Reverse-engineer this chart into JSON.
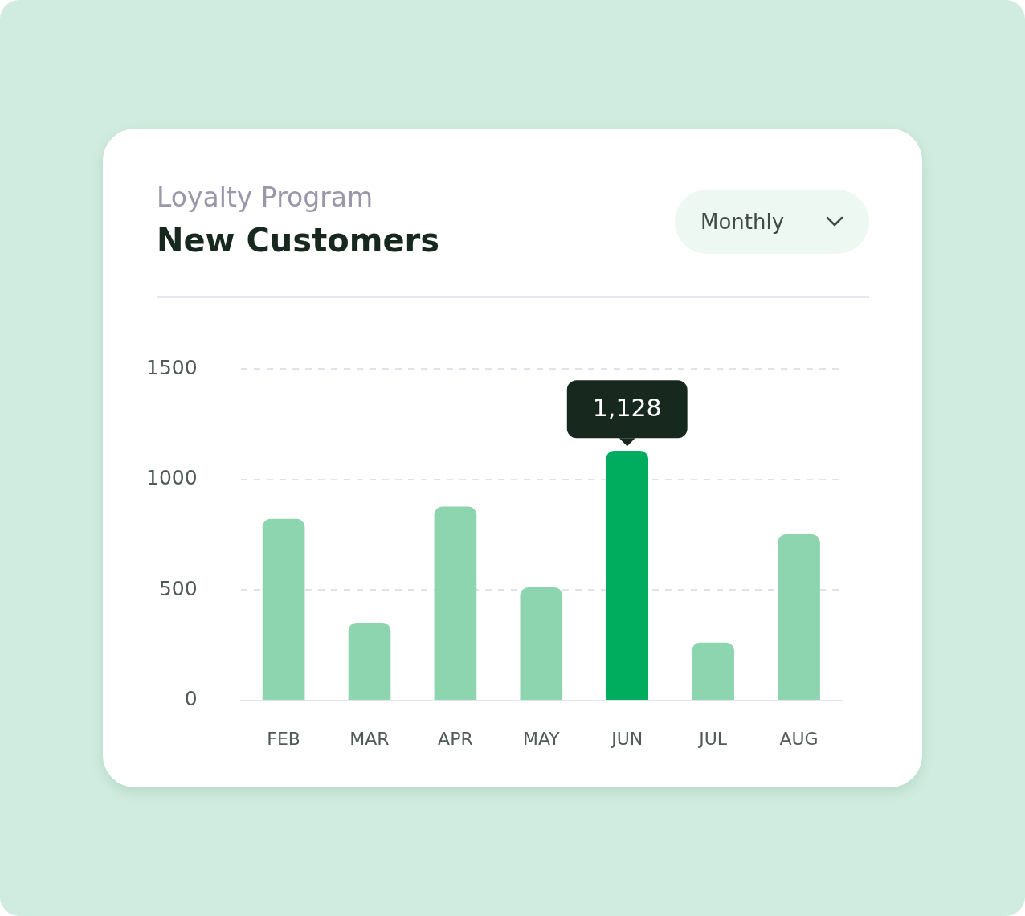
{
  "chart_data": {
    "type": "bar",
    "subtitle": "Loyalty Program",
    "title": "New Customers",
    "annotations": [
      "Monthly"
    ],
    "categories": [
      "FEB",
      "MAR",
      "APR",
      "MAY",
      "JUN",
      "JUL",
      "AUG"
    ],
    "values": [
      820,
      350,
      875,
      510,
      1128,
      260,
      750
    ],
    "colors": [
      "#8dd5ae",
      "#8dd5ae",
      "#8dd5ae",
      "#8dd5ae",
      "#00ad5f",
      "#8dd5ae",
      "#8dd5ae"
    ],
    "value_labels": [
      null,
      null,
      null,
      null,
      "1,128",
      null,
      null
    ],
    "ylim": [
      0,
      1500
    ],
    "yticks": [
      0,
      500,
      1000,
      1500
    ],
    "grid": "y",
    "legend": false
  }
}
